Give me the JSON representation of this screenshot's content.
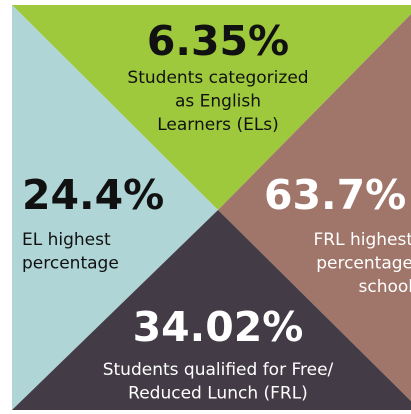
{
  "panels": [
    {
      "stat": "6.35%",
      "lines": [
        "Students categorized",
        "as English",
        "Learners (ELs)"
      ]
    },
    {
      "stat": "24.4%",
      "lines": [
        "EL highest",
        "percentage"
      ]
    },
    {
      "stat": "63.7%",
      "lines": [
        "FRL highest",
        "percentage",
        "school"
      ]
    },
    {
      "stat": "34.02%",
      "lines": [
        "Students qualified for Free/",
        "Reduced Lunch (FRL)"
      ]
    }
  ]
}
